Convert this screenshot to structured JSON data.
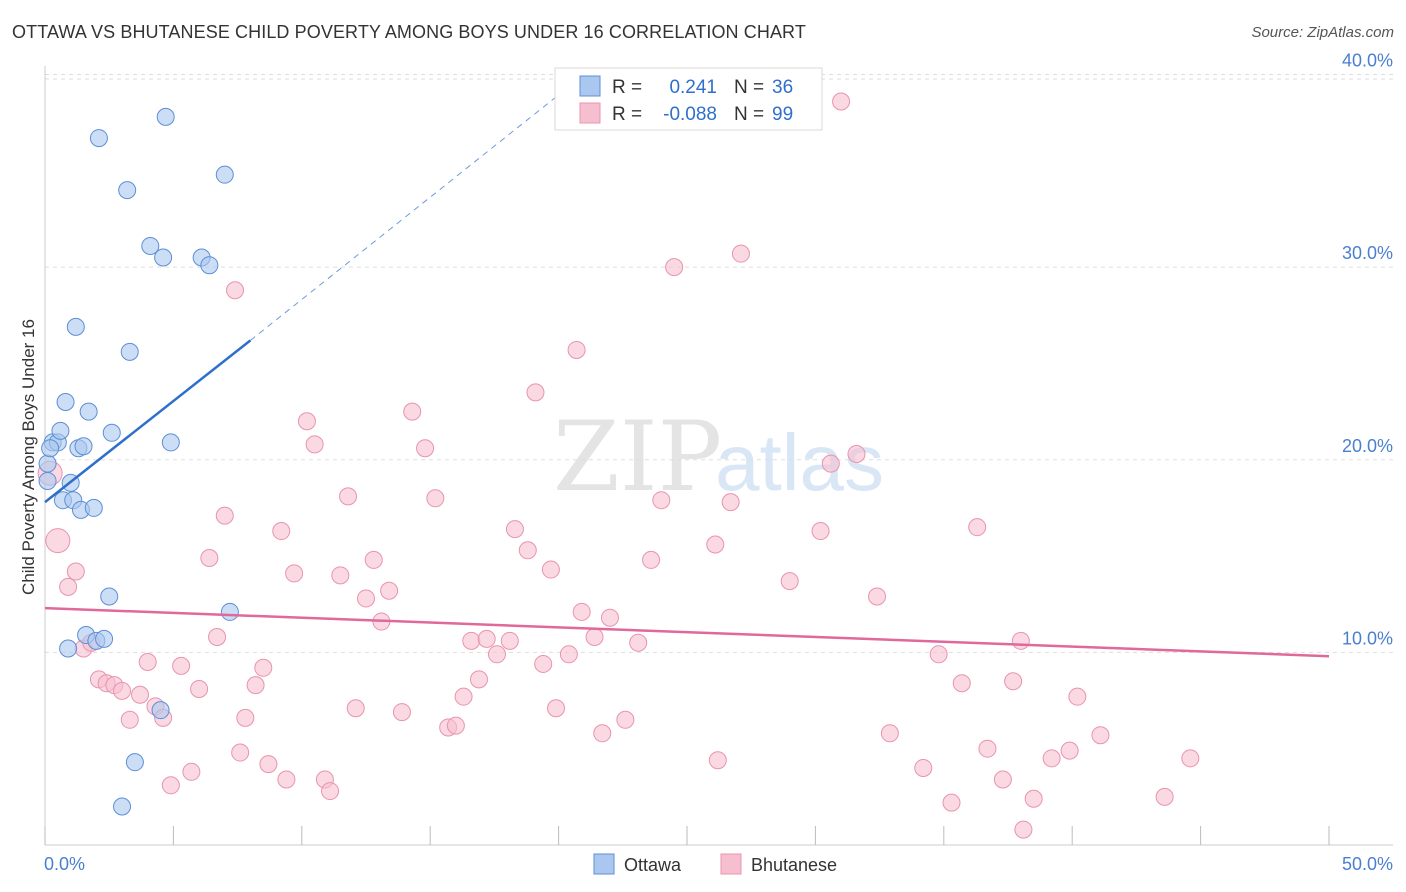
{
  "title": "OTTAWA VS BHUTANESE CHILD POVERTY AMONG BOYS UNDER 16 CORRELATION CHART",
  "source": "Source: ZipAtlas.com",
  "watermark": {
    "zip": "ZIP",
    "atlas": "atlas"
  },
  "colors": {
    "ottawa_fill": "#aac8ef",
    "ottawa_stroke": "#5c8fd6",
    "ottawa_line": "#2f6fcc",
    "bhutanese_fill": "#f6bfd0",
    "bhutanese_stroke": "#e993b0",
    "bhutanese_line": "#e0689a",
    "accent_text": "#2f6fcc",
    "grid": "#dddddd"
  },
  "legend": {
    "rows": [
      {
        "series": "Ottawa",
        "r_label": "R =",
        "r_value": "0.241",
        "n_label": "N =",
        "n_value": "36"
      },
      {
        "series": "Bhutanese",
        "r_label": "R =",
        "r_value": "-0.088",
        "n_label": "N =",
        "n_value": "99"
      }
    ]
  },
  "bottom_legend": [
    "Ottawa",
    "Bhutanese"
  ],
  "chart_data": {
    "type": "scatter",
    "title": "OTTAWA VS BHUTANESE CHILD POVERTY AMONG BOYS UNDER 16 CORRELATION CHART",
    "xlabel": "",
    "ylabel": "Child Poverty Among Boys Under 16",
    "xlim": [
      0,
      50
    ],
    "ylim": [
      0,
      42
    ],
    "y_ticks": [
      10,
      20,
      30,
      40
    ],
    "y_tick_labels": [
      "10.0%",
      "20.0%",
      "30.0%",
      "40.0%"
    ],
    "x_tick_labels": {
      "min": "0.0%",
      "max": "50.0%"
    },
    "x_minor_ticks": [
      0,
      5,
      10,
      15,
      20,
      25,
      30,
      35,
      40,
      45,
      50
    ],
    "series": [
      {
        "name": "Ottawa",
        "r": 0.241,
        "n": 36,
        "trend": {
          "x0": 0,
          "y0": 17.8,
          "x1": 8.0,
          "y1": 26.2,
          "dash_x1": 21.0,
          "dash_y1": 40.0
        },
        "points": [
          {
            "x": 0.1,
            "y": 19.8
          },
          {
            "x": 0.1,
            "y": 18.9
          },
          {
            "x": 0.3,
            "y": 20.9
          },
          {
            "x": 0.5,
            "y": 20.9
          },
          {
            "x": 0.6,
            "y": 21.5
          },
          {
            "x": 0.7,
            "y": 17.9
          },
          {
            "x": 0.8,
            "y": 23.0
          },
          {
            "x": 0.9,
            "y": 10.2
          },
          {
            "x": 1.0,
            "y": 18.8
          },
          {
            "x": 1.1,
            "y": 17.9
          },
          {
            "x": 1.2,
            "y": 26.9
          },
          {
            "x": 1.3,
            "y": 20.6
          },
          {
            "x": 1.4,
            "y": 17.4
          },
          {
            "x": 1.5,
            "y": 20.7
          },
          {
            "x": 1.6,
            "y": 10.9
          },
          {
            "x": 1.7,
            "y": 22.5
          },
          {
            "x": 1.9,
            "y": 17.5
          },
          {
            "x": 2.0,
            "y": 10.6
          },
          {
            "x": 2.1,
            "y": 36.7
          },
          {
            "x": 2.3,
            "y": 10.7
          },
          {
            "x": 2.5,
            "y": 12.9
          },
          {
            "x": 2.6,
            "y": 21.4
          },
          {
            "x": 3.0,
            "y": 2.0
          },
          {
            "x": 3.2,
            "y": 34.0
          },
          {
            "x": 3.3,
            "y": 25.6
          },
          {
            "x": 3.5,
            "y": 4.3
          },
          {
            "x": 4.1,
            "y": 31.1
          },
          {
            "x": 4.5,
            "y": 7.0
          },
          {
            "x": 4.6,
            "y": 30.5
          },
          {
            "x": 4.7,
            "y": 37.8
          },
          {
            "x": 4.9,
            "y": 20.9
          },
          {
            "x": 6.1,
            "y": 30.5
          },
          {
            "x": 6.4,
            "y": 30.1
          },
          {
            "x": 7.0,
            "y": 34.8
          },
          {
            "x": 7.2,
            "y": 12.1
          },
          {
            "x": 0.2,
            "y": 20.6
          }
        ]
      },
      {
        "name": "Bhutanese",
        "r": -0.088,
        "n": 99,
        "trend": {
          "x0": 0,
          "y0": 12.3,
          "x1": 50,
          "y1": 9.8
        },
        "points": [
          {
            "x": 0.2,
            "y": 19.3,
            "big": true
          },
          {
            "x": 0.5,
            "y": 15.8,
            "big": true
          },
          {
            "x": 0.9,
            "y": 13.4
          },
          {
            "x": 1.2,
            "y": 14.2
          },
          {
            "x": 1.5,
            "y": 10.2
          },
          {
            "x": 1.8,
            "y": 10.5
          },
          {
            "x": 2.1,
            "y": 8.6
          },
          {
            "x": 2.4,
            "y": 8.4
          },
          {
            "x": 2.7,
            "y": 8.3
          },
          {
            "x": 3.0,
            "y": 8.0
          },
          {
            "x": 3.3,
            "y": 6.5
          },
          {
            "x": 3.7,
            "y": 7.8
          },
          {
            "x": 4.0,
            "y": 9.5
          },
          {
            "x": 4.3,
            "y": 7.2
          },
          {
            "x": 4.6,
            "y": 6.6
          },
          {
            "x": 4.9,
            "y": 3.1
          },
          {
            "x": 5.3,
            "y": 9.3
          },
          {
            "x": 5.7,
            "y": 3.8
          },
          {
            "x": 6.0,
            "y": 8.1
          },
          {
            "x": 6.4,
            "y": 14.9
          },
          {
            "x": 6.7,
            "y": 10.8
          },
          {
            "x": 7.0,
            "y": 17.1
          },
          {
            "x": 7.4,
            "y": 28.8
          },
          {
            "x": 7.6,
            "y": 4.8
          },
          {
            "x": 7.8,
            "y": 6.6
          },
          {
            "x": 8.2,
            "y": 8.3
          },
          {
            "x": 8.5,
            "y": 9.2
          },
          {
            "x": 8.7,
            "y": 4.2
          },
          {
            "x": 9.2,
            "y": 16.3
          },
          {
            "x": 9.4,
            "y": 3.4
          },
          {
            "x": 9.7,
            "y": 14.1
          },
          {
            "x": 10.2,
            "y": 22.0
          },
          {
            "x": 10.5,
            "y": 20.8
          },
          {
            "x": 10.9,
            "y": 3.4
          },
          {
            "x": 11.1,
            "y": 2.8
          },
          {
            "x": 11.5,
            "y": 14.0
          },
          {
            "x": 11.8,
            "y": 18.1
          },
          {
            "x": 12.1,
            "y": 7.1
          },
          {
            "x": 12.5,
            "y": 12.8
          },
          {
            "x": 12.8,
            "y": 14.8
          },
          {
            "x": 13.1,
            "y": 11.6
          },
          {
            "x": 13.4,
            "y": 13.2
          },
          {
            "x": 13.9,
            "y": 6.9
          },
          {
            "x": 14.3,
            "y": 22.5
          },
          {
            "x": 14.8,
            "y": 20.6
          },
          {
            "x": 15.2,
            "y": 18.0
          },
          {
            "x": 15.7,
            "y": 6.1
          },
          {
            "x": 16.0,
            "y": 6.2
          },
          {
            "x": 16.3,
            "y": 7.7
          },
          {
            "x": 16.6,
            "y": 10.6
          },
          {
            "x": 16.9,
            "y": 8.6
          },
          {
            "x": 17.2,
            "y": 10.7
          },
          {
            "x": 17.6,
            "y": 9.9
          },
          {
            "x": 18.1,
            "y": 10.6
          },
          {
            "x": 18.3,
            "y": 16.4
          },
          {
            "x": 18.8,
            "y": 15.3
          },
          {
            "x": 19.1,
            "y": 23.5
          },
          {
            "x": 19.4,
            "y": 9.4
          },
          {
            "x": 19.7,
            "y": 14.3
          },
          {
            "x": 19.9,
            "y": 7.1
          },
          {
            "x": 20.4,
            "y": 9.9
          },
          {
            "x": 20.7,
            "y": 25.7
          },
          {
            "x": 20.9,
            "y": 12.1
          },
          {
            "x": 21.4,
            "y": 10.8
          },
          {
            "x": 21.7,
            "y": 5.8
          },
          {
            "x": 22.0,
            "y": 11.8
          },
          {
            "x": 22.6,
            "y": 6.5
          },
          {
            "x": 23.1,
            "y": 10.5
          },
          {
            "x": 23.6,
            "y": 14.8
          },
          {
            "x": 24.0,
            "y": 17.9
          },
          {
            "x": 24.5,
            "y": 30.0
          },
          {
            "x": 26.1,
            "y": 15.6
          },
          {
            "x": 26.2,
            "y": 4.4
          },
          {
            "x": 26.7,
            "y": 17.8
          },
          {
            "x": 27.1,
            "y": 30.7
          },
          {
            "x": 29.0,
            "y": 13.7
          },
          {
            "x": 30.2,
            "y": 16.3
          },
          {
            "x": 30.6,
            "y": 19.8
          },
          {
            "x": 31.0,
            "y": 38.6
          },
          {
            "x": 31.6,
            "y": 20.3
          },
          {
            "x": 32.4,
            "y": 12.9
          },
          {
            "x": 32.9,
            "y": 5.8
          },
          {
            "x": 34.2,
            "y": 4.0
          },
          {
            "x": 34.8,
            "y": 9.9
          },
          {
            "x": 35.3,
            "y": 2.2
          },
          {
            "x": 35.7,
            "y": 8.4
          },
          {
            "x": 36.3,
            "y": 16.5
          },
          {
            "x": 36.7,
            "y": 5.0
          },
          {
            "x": 37.3,
            "y": 3.4
          },
          {
            "x": 37.7,
            "y": 8.5
          },
          {
            "x": 38.0,
            "y": 10.6
          },
          {
            "x": 38.1,
            "y": 0.8
          },
          {
            "x": 38.5,
            "y": 2.4
          },
          {
            "x": 39.2,
            "y": 4.5
          },
          {
            "x": 40.2,
            "y": 7.7
          },
          {
            "x": 41.1,
            "y": 5.7
          },
          {
            "x": 43.6,
            "y": 2.5
          },
          {
            "x": 44.6,
            "y": 4.5
          },
          {
            "x": 39.9,
            "y": 4.9
          }
        ]
      }
    ]
  }
}
